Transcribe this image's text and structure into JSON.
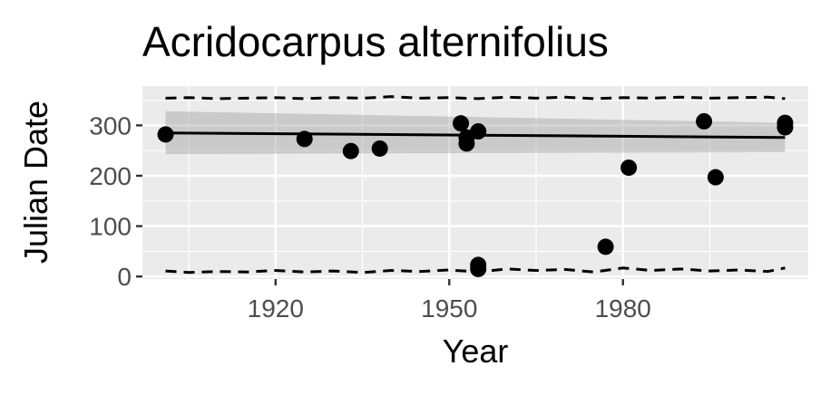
{
  "chart_data": {
    "type": "scatter",
    "title": "Acridocarpus alternifolius",
    "xlabel": "Year",
    "ylabel": "Julian Date",
    "xlim": [
      1897,
      2012
    ],
    "ylim": [
      -5,
      378
    ],
    "x_ticks": [
      1920,
      1950,
      1980
    ],
    "y_ticks": [
      0,
      100,
      200,
      300
    ],
    "grid": true,
    "background": "#ebebeb",
    "points": [
      {
        "x": 1901,
        "y": 282
      },
      {
        "x": 1925,
        "y": 273
      },
      {
        "x": 1933,
        "y": 249
      },
      {
        "x": 1938,
        "y": 254
      },
      {
        "x": 1952,
        "y": 304
      },
      {
        "x": 1953,
        "y": 276
      },
      {
        "x": 1953,
        "y": 264
      },
      {
        "x": 1955,
        "y": 288
      },
      {
        "x": 1955,
        "y": 23
      },
      {
        "x": 1955,
        "y": 15
      },
      {
        "x": 1977,
        "y": 59
      },
      {
        "x": 1981,
        "y": 216
      },
      {
        "x": 1994,
        "y": 308
      },
      {
        "x": 1996,
        "y": 197
      },
      {
        "x": 2008,
        "y": 305
      },
      {
        "x": 2008,
        "y": 296
      }
    ],
    "trend": {
      "x": [
        1901,
        2008
      ],
      "y": [
        285,
        276
      ]
    },
    "ci_band": {
      "x": [
        1901,
        2008
      ],
      "upper": [
        328,
        305
      ],
      "lower": [
        243,
        247
      ]
    },
    "upper_bound": {
      "x": [
        1901,
        1905,
        1910,
        1915,
        1920,
        1925,
        1930,
        1935,
        1940,
        1945,
        1950,
        1955,
        1960,
        1965,
        1970,
        1975,
        1980,
        1985,
        1990,
        1995,
        2000,
        2005,
        2008
      ],
      "y": [
        354,
        355,
        353,
        354,
        355,
        353,
        355,
        354,
        357,
        354,
        355,
        353,
        356,
        354,
        356,
        353,
        355,
        354,
        356,
        354,
        355,
        356,
        353
      ]
    },
    "lower_bound": {
      "x": [
        1901,
        1905,
        1910,
        1915,
        1920,
        1925,
        1930,
        1935,
        1940,
        1945,
        1950,
        1955,
        1960,
        1965,
        1970,
        1975,
        1980,
        1985,
        1990,
        1995,
        2000,
        2005,
        2008
      ],
      "y": [
        11,
        8,
        10,
        9,
        12,
        9,
        11,
        8,
        12,
        10,
        13,
        9,
        15,
        12,
        14,
        9,
        17,
        12,
        15,
        11,
        13,
        10,
        17
      ]
    }
  }
}
